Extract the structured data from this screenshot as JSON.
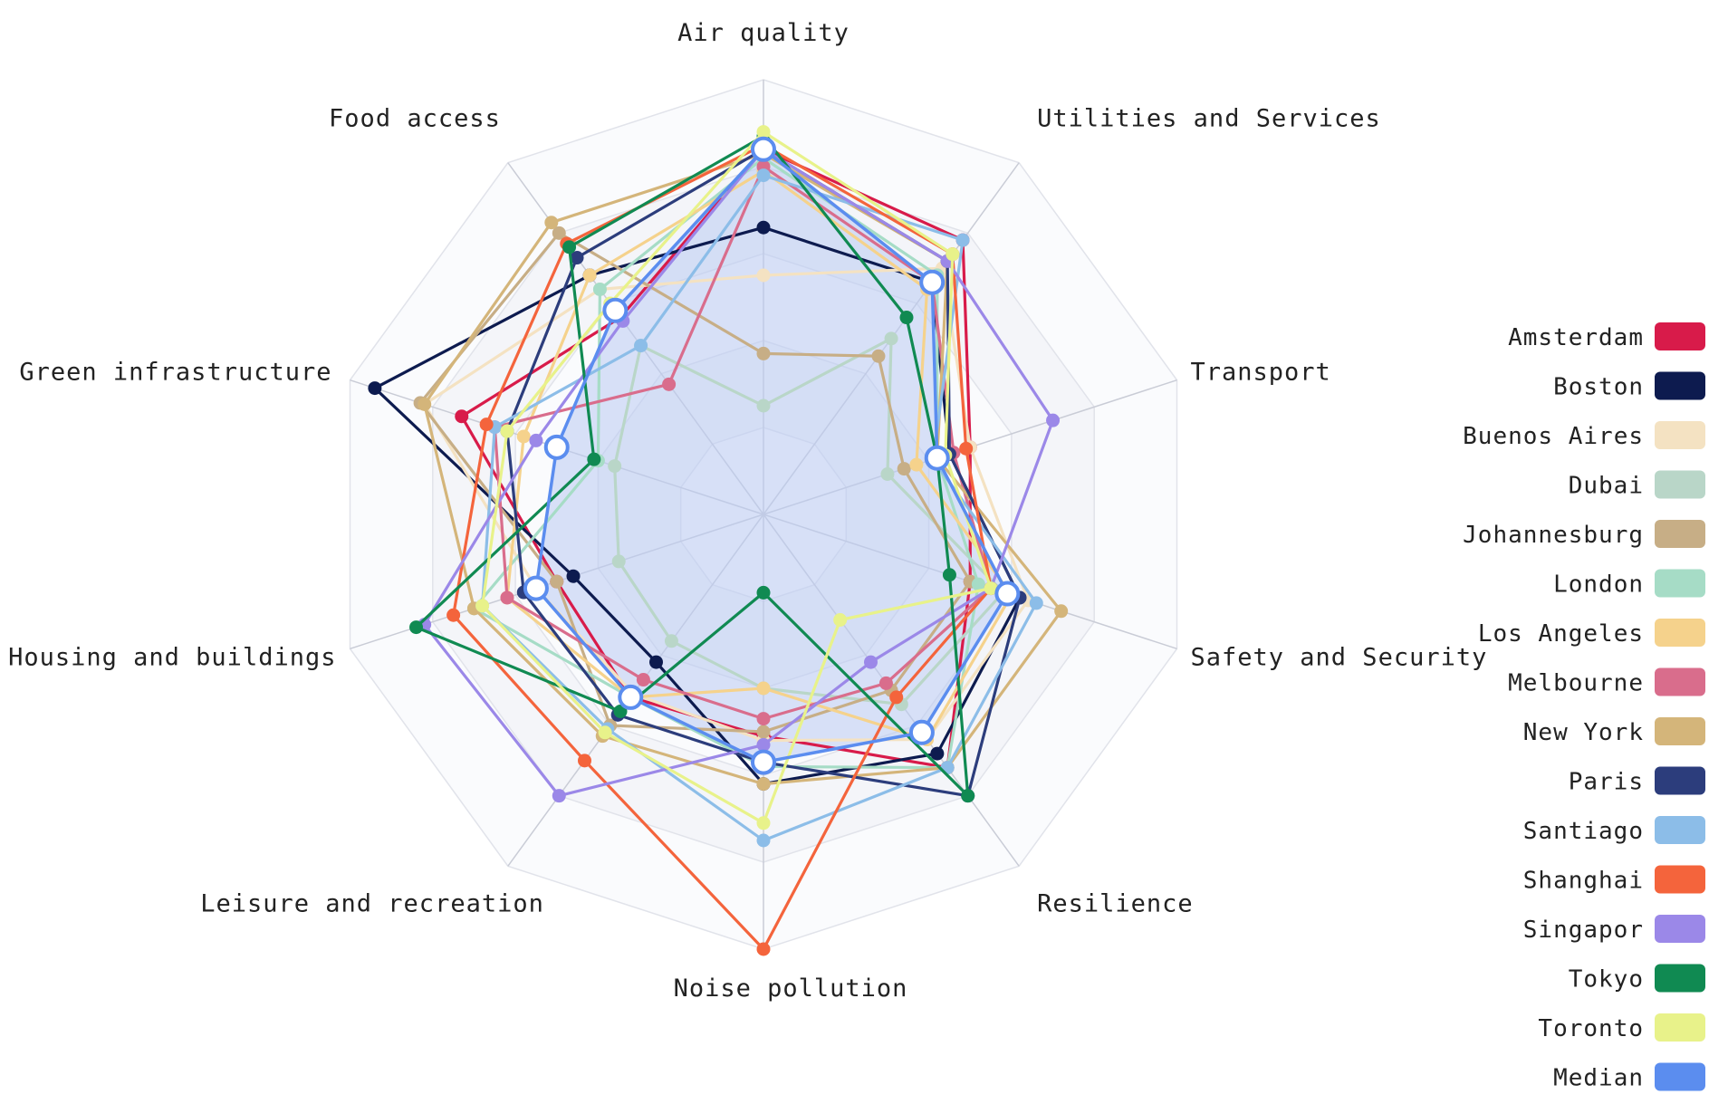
{
  "chart_data": {
    "type": "radar",
    "title": "",
    "axes": [
      "Air quality",
      "Utilities and Services",
      "Transport",
      "Safety and Security",
      "Resilience",
      "Noise pollution",
      "Leisure and recreation",
      "Housing and buildings",
      "Green infrastructure",
      "Food access"
    ],
    "scale": {
      "min": 0,
      "max": 100,
      "rings": 5
    },
    "series": [
      {
        "name": "Amsterdam",
        "color": "#d81b4a",
        "values": [
          84,
          78,
          50,
          50,
          72,
          51,
          52,
          50,
          73,
          56
        ]
      },
      {
        "name": "Boston",
        "color": "#0d1b4f",
        "values": [
          66,
          66,
          45,
          62,
          68,
          62,
          42,
          46,
          94,
          68
        ]
      },
      {
        "name": "Buenos Aires",
        "color": "#f4e2c2",
        "values": [
          55,
          70,
          50,
          64,
          64,
          52,
          51,
          55,
          82,
          64
        ]
      },
      {
        "name": "Dubai",
        "color": "#b9d6c8",
        "values": [
          25,
          50,
          30,
          58,
          54,
          40,
          36,
          35,
          36,
          48
        ]
      },
      {
        "name": "Johannesburg",
        "color": "#c7ae86",
        "values": [
          37,
          45,
          34,
          50,
          50,
          50,
          60,
          50,
          83,
          80
        ]
      },
      {
        "name": "London",
        "color": "#a6dcc6",
        "values": [
          82,
          68,
          42,
          52,
          72,
          58,
          52,
          70,
          40,
          64
        ]
      },
      {
        "name": "Los Angeles",
        "color": "#f5d28c",
        "values": [
          79,
          64,
          37,
          60,
          64,
          40,
          52,
          62,
          58,
          68
        ]
      },
      {
        "name": "Melbourne",
        "color": "#d96d8c",
        "values": [
          80,
          66,
          46,
          55,
          48,
          47,
          47,
          62,
          65,
          37
        ]
      },
      {
        "name": "New York",
        "color": "#d4b57a",
        "values": [
          83,
          72,
          42,
          72,
          72,
          62,
          63,
          70,
          82,
          83
        ]
      },
      {
        "name": "Paris",
        "color": "#2c3d7c",
        "values": [
          84,
          72,
          45,
          62,
          80,
          57,
          57,
          58,
          62,
          73
        ]
      },
      {
        "name": "Santiago",
        "color": "#8cbde8",
        "values": [
          78,
          78,
          41,
          66,
          72,
          75,
          61,
          68,
          65,
          48
        ]
      },
      {
        "name": "Shanghai",
        "color": "#f4643c",
        "values": [
          85,
          74,
          49,
          55,
          52,
          100,
          70,
          75,
          67,
          77
        ]
      },
      {
        "name": "Singapor",
        "color": "#9b88e8",
        "values": [
          84,
          72,
          70,
          55,
          42,
          53,
          80,
          82,
          55,
          55
        ]
      },
      {
        "name": "Tokyo",
        "color": "#108a52",
        "values": [
          87,
          56,
          42,
          45,
          80,
          18,
          56,
          84,
          41,
          76
        ]
      },
      {
        "name": "Toronto",
        "color": "#e8f28a",
        "values": [
          88,
          74,
          44,
          55,
          30,
          71,
          62,
          68,
          62,
          60
        ]
      },
      {
        "name": "Median",
        "color": "#5b8def",
        "values": [
          84,
          66,
          42,
          59,
          62,
          57,
          52,
          55,
          50,
          58
        ]
      }
    ],
    "legend_position": "right"
  }
}
